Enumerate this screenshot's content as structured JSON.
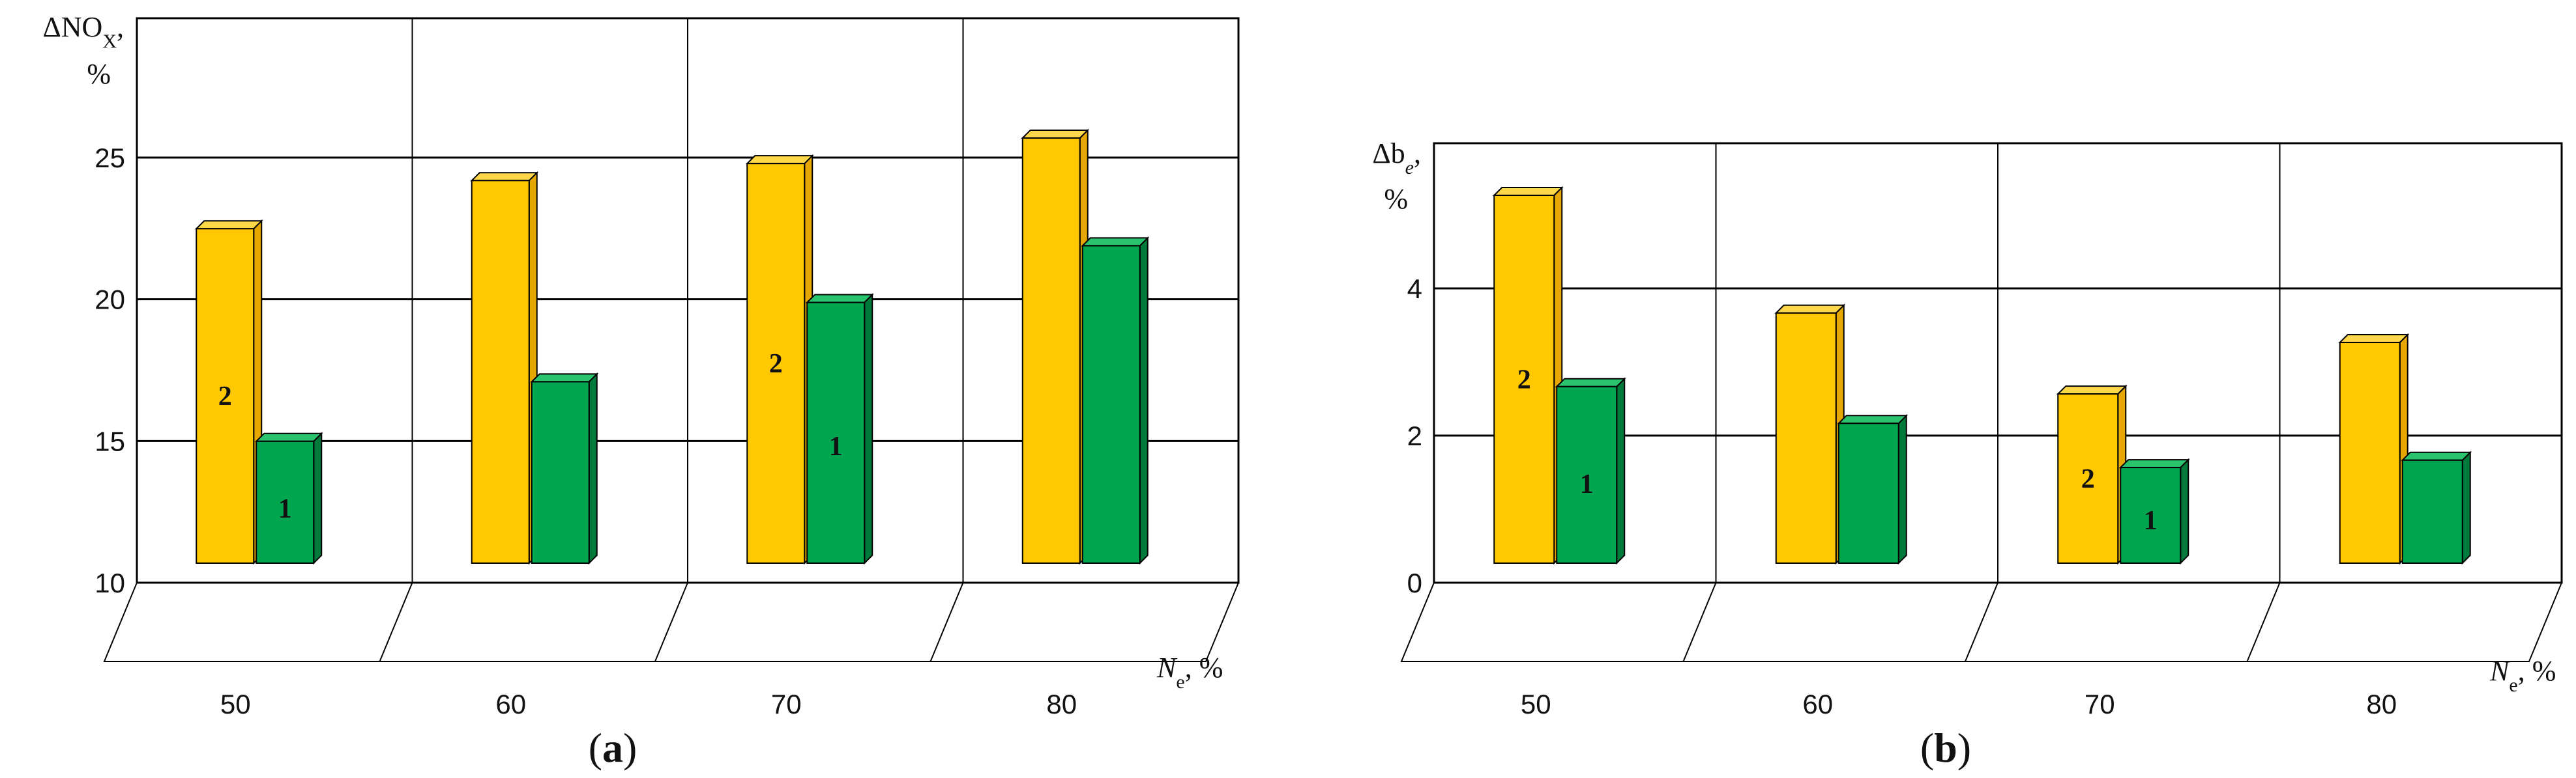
{
  "colors": {
    "series2_front": "#FFC800",
    "series2_top": "#FFD84A",
    "series2_side": "#E6A800",
    "series1_front": "#00A550",
    "series1_top": "#2BC46E",
    "series1_side": "#007A3A",
    "grid": "#000000"
  },
  "chart_data": [
    {
      "panel_label": "a",
      "type": "bar",
      "ylabel_parts": [
        "ΔNO",
        "X",
        ","
      ],
      "yunit": "%",
      "xlabel_parts": [
        "N",
        "e",
        ", %"
      ],
      "categories": [
        "50",
        "60",
        "70",
        "80"
      ],
      "ylim": [
        10,
        25
      ],
      "yticks": [
        "10",
        "15",
        "20",
        "25"
      ],
      "grid": true,
      "series": [
        {
          "name": "2",
          "values": [
            21.8,
            23.5,
            24.1,
            25.0
          ]
        },
        {
          "name": "1",
          "values": [
            14.3,
            16.4,
            19.2,
            21.2
          ]
        }
      ],
      "bar_labels": [
        {
          "series": "2",
          "category": "50",
          "text": "2"
        },
        {
          "series": "1",
          "category": "50",
          "text": "1"
        },
        {
          "series": "2",
          "category": "70",
          "text": "2"
        },
        {
          "series": "1",
          "category": "70",
          "text": "1"
        }
      ]
    },
    {
      "panel_label": "b",
      "type": "bar",
      "ylabel_parts": [
        "Δb",
        "e",
        ","
      ],
      "yunit": "%",
      "xlabel_parts": [
        "N",
        "e",
        ", %"
      ],
      "categories": [
        "50",
        "60",
        "70",
        "80"
      ],
      "ylim": [
        0,
        4
      ],
      "yticks": [
        "0",
        "2",
        "4"
      ],
      "grid": true,
      "series": [
        {
          "name": "2",
          "values": [
            5.0,
            3.4,
            2.3,
            3.0
          ]
        },
        {
          "name": "1",
          "values": [
            2.4,
            1.9,
            1.3,
            1.4
          ]
        }
      ],
      "bar_labels": [
        {
          "series": "2",
          "category": "50",
          "text": "2"
        },
        {
          "series": "1",
          "category": "50",
          "text": "1"
        },
        {
          "series": "2",
          "category": "70",
          "text": "2"
        },
        {
          "series": "1",
          "category": "70",
          "text": "1"
        }
      ]
    }
  ]
}
